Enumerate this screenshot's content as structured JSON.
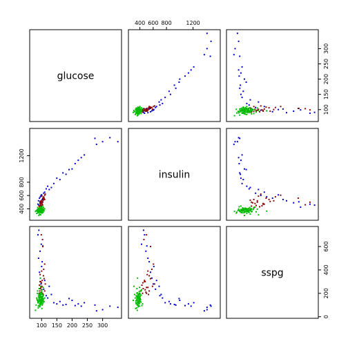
{
  "chart_data": {
    "type": "scatter",
    "plot_kind": "scatterplot-matrix",
    "variables": [
      "glucose",
      "insulin",
      "sspg"
    ],
    "ranges": {
      "glucose": [
        70,
        353
      ],
      "insulin": [
        269,
        1568
      ],
      "sspg": [
        10,
        748
      ]
    },
    "tick_labels": {
      "glucose": [
        "100",
        "150",
        "200",
        "250",
        "300"
      ],
      "insulin": [
        "400",
        "600",
        "800",
        "1200"
      ],
      "sspg": [
        "0",
        "200",
        "400",
        "600"
      ]
    },
    "tick_values": {
      "glucose": [
        100,
        150,
        200,
        250,
        300
      ],
      "insulin": [
        400,
        600,
        800,
        1200
      ],
      "sspg": [
        0,
        200,
        400,
        600
      ]
    },
    "groups": [
      {
        "color": "#0000cc"
      },
      {
        "color": "#8b0000"
      },
      {
        "color": "#00bb00"
      }
    ],
    "points": [
      [
        1,
        350,
        1410,
        80,
        0
      ],
      [
        1,
        324,
        1470,
        90,
        0
      ],
      [
        1,
        300,
        1410,
        60,
        0
      ],
      [
        1,
        275,
        1460,
        100,
        0
      ],
      [
        1,
        280,
        1370,
        50,
        0
      ],
      [
        1,
        240,
        1210,
        120,
        0
      ],
      [
        1,
        220,
        1130,
        110,
        0
      ],
      [
        1,
        210,
        1080,
        95,
        0
      ],
      [
        1,
        200,
        1000,
        140,
        0
      ],
      [
        1,
        190,
        990,
        155,
        0
      ],
      [
        1,
        180,
        920,
        105,
        0
      ],
      [
        1,
        160,
        840,
        130,
        0
      ],
      [
        1,
        140,
        780,
        120,
        0
      ],
      [
        1,
        132,
        720,
        190,
        0
      ],
      [
        1,
        125,
        690,
        260,
        0
      ],
      [
        1,
        110,
        650,
        310,
        0
      ],
      [
        1,
        100,
        610,
        430,
        0
      ],
      [
        1,
        96,
        580,
        330,
        0
      ],
      [
        1,
        93,
        560,
        380,
        0
      ],
      [
        1,
        98,
        600,
        280,
        0
      ],
      [
        1,
        102,
        540,
        470,
        0
      ],
      [
        1,
        90,
        520,
        500,
        0
      ],
      [
        1,
        95,
        490,
        560,
        0
      ],
      [
        1,
        104,
        505,
        605,
        0
      ],
      [
        1,
        88,
        470,
        700,
        0
      ],
      [
        1,
        91,
        455,
        740,
        0
      ],
      [
        1,
        99,
        425,
        620,
        0
      ],
      [
        1,
        107,
        635,
        235,
        0
      ],
      [
        1,
        115,
        700,
        180,
        0
      ],
      [
        1,
        120,
        740,
        160,
        0
      ],
      [
        1,
        150,
        860,
        110,
        0
      ],
      [
        1,
        170,
        940,
        100,
        0
      ],
      [
        1,
        230,
        1170,
        90,
        0
      ],
      [
        2,
        95,
        480,
        300,
        0
      ],
      [
        2,
        100,
        520,
        390,
        0
      ],
      [
        2,
        104,
        560,
        600,
        0
      ],
      [
        2,
        98,
        500,
        250,
        0
      ],
      [
        2,
        110,
        605,
        450,
        0
      ],
      [
        2,
        92,
        440,
        200,
        0
      ],
      [
        2,
        106,
        540,
        350,
        0
      ],
      [
        2,
        103,
        460,
        660,
        0
      ],
      [
        2,
        97,
        470,
        300,
        0
      ],
      [
        2,
        112,
        620,
        280,
        0
      ],
      [
        2,
        94,
        410,
        220,
        0
      ],
      [
        2,
        101,
        590,
        260,
        0
      ],
      [
        2,
        99,
        500,
        700,
        0
      ],
      [
        2,
        108,
        560,
        325,
        0
      ],
      [
        2,
        96,
        450,
        240,
        0
      ],
      [
        2,
        100,
        490,
        210,
        0
      ],
      [
        2,
        105,
        530,
        190,
        0
      ],
      [
        2,
        102,
        470,
        310,
        0
      ],
      [
        2,
        93,
        430,
        270,
        0
      ],
      [
        2,
        107,
        580,
        405,
        0
      ],
      [
        2,
        98,
        520,
        250,
        0
      ],
      [
        2,
        110,
        540,
        220,
        0
      ],
      [
        2,
        95,
        510,
        360,
        0
      ],
      [
        2,
        103,
        500,
        200,
        0
      ],
      [
        2,
        99,
        445,
        290,
        0
      ],
      [
        2,
        101,
        480,
        230,
        0
      ],
      [
        3,
        80,
        360,
        55,
        0
      ],
      [
        3,
        82,
        370,
        100,
        0
      ],
      [
        3,
        85,
        380,
        150,
        0
      ],
      [
        3,
        86,
        390,
        200,
        0
      ],
      [
        3,
        88,
        340,
        120,
        0
      ],
      [
        3,
        89,
        350,
        75,
        0
      ],
      [
        3,
        90,
        360,
        170,
        0
      ],
      [
        3,
        90,
        400,
        130,
        0
      ],
      [
        3,
        91,
        380,
        95,
        0
      ],
      [
        3,
        92,
        370,
        160,
        0
      ],
      [
        3,
        92,
        355,
        240,
        0
      ],
      [
        3,
        93,
        390,
        110,
        0
      ],
      [
        3,
        93,
        345,
        180,
        0
      ],
      [
        3,
        94,
        410,
        145,
        0
      ],
      [
        3,
        94,
        375,
        85,
        0
      ],
      [
        3,
        95,
        360,
        205,
        0
      ],
      [
        3,
        95,
        395,
        125,
        0
      ],
      [
        3,
        96,
        380,
        165,
        0
      ],
      [
        3,
        96,
        350,
        140,
        0
      ],
      [
        3,
        97,
        400,
        190,
        0
      ],
      [
        3,
        97,
        365,
        105,
        0
      ],
      [
        3,
        98,
        385,
        155,
        0
      ],
      [
        3,
        98,
        340,
        135,
        0
      ],
      [
        3,
        99,
        405,
        175,
        0
      ],
      [
        3,
        99,
        370,
        115,
        0
      ],
      [
        3,
        100,
        390,
        215,
        0
      ],
      [
        3,
        100,
        355,
        145,
        0
      ],
      [
        3,
        101,
        415,
        125,
        0
      ],
      [
        3,
        101,
        380,
        170,
        0
      ],
      [
        3,
        102,
        360,
        100,
        0
      ],
      [
        3,
        102,
        400,
        200,
        0
      ],
      [
        3,
        103,
        375,
        135,
        0
      ],
      [
        3,
        104,
        390,
        160,
        0
      ],
      [
        3,
        105,
        345,
        120,
        0
      ],
      [
        3,
        106,
        420,
        185,
        0
      ],
      [
        3,
        107,
        385,
        150,
        0
      ],
      [
        3,
        108,
        370,
        130,
        0
      ],
      [
        3,
        84,
        330,
        160,
        0
      ],
      [
        3,
        87,
        420,
        220,
        0
      ],
      [
        3,
        91,
        300,
        140,
        0
      ],
      [
        3,
        93,
        320,
        190,
        0
      ],
      [
        3,
        95,
        430,
        95,
        0
      ],
      [
        3,
        97,
        310,
        260,
        0
      ],
      [
        3,
        99,
        425,
        230,
        0
      ],
      [
        3,
        101,
        335,
        70,
        0
      ],
      [
        3,
        103,
        440,
        110,
        0
      ],
      [
        3,
        105,
        395,
        250,
        0
      ],
      [
        3,
        96,
        365,
        330,
        0
      ],
      [
        3,
        89,
        395,
        90,
        0
      ],
      [
        3,
        92,
        405,
        155,
        0
      ],
      [
        3,
        98,
        350,
        175,
        0
      ],
      [
        3,
        100,
        375,
        125,
        0
      ],
      [
        3,
        94,
        360,
        140,
        0
      ],
      [
        3,
        97,
        390,
        115,
        0
      ],
      [
        3,
        95,
        375,
        180,
        0
      ],
      [
        3,
        99,
        360,
        160,
        0
      ],
      [
        3,
        91,
        385,
        150,
        0
      ],
      [
        3,
        102,
        395,
        140,
        0
      ],
      [
        3,
        96,
        405,
        130,
        0
      ],
      [
        3,
        93,
        355,
        165,
        0
      ],
      [
        3,
        100,
        370,
        190,
        0
      ],
      [
        3,
        104,
        365,
        175,
        0
      ],
      [
        3,
        98,
        400,
        145,
        0
      ],
      [
        3,
        95,
        345,
        110,
        0
      ],
      [
        3,
        88,
        375,
        130,
        0
      ],
      [
        3,
        90,
        390,
        185,
        0
      ],
      [
        3,
        106,
        385,
        135,
        0
      ],
      [
        3,
        97,
        355,
        200,
        0
      ],
      [
        3,
        99,
        380,
        120,
        0
      ],
      [
        3,
        101,
        370,
        165,
        0
      ],
      [
        3,
        94,
        395,
        170,
        0
      ],
      [
        3,
        92,
        365,
        125,
        0
      ],
      [
        3,
        96,
        385,
        195,
        0
      ],
      [
        3,
        103,
        355,
        150,
        0
      ],
      [
        3,
        110,
        400,
        160,
        0
      ],
      [
        3,
        86,
        360,
        140,
        0
      ]
    ]
  }
}
